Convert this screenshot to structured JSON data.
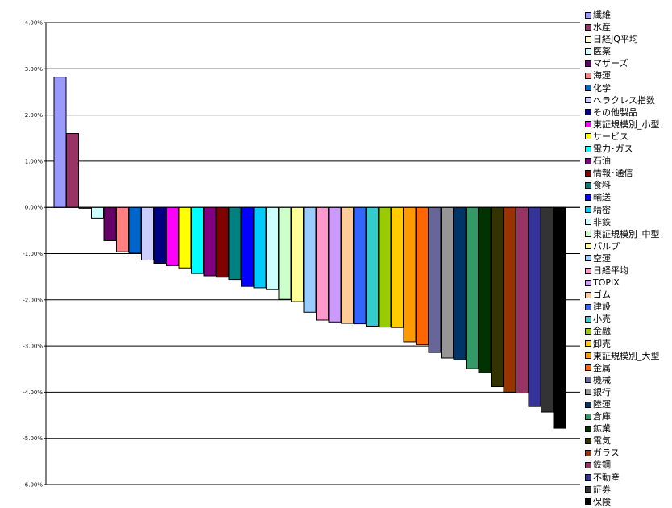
{
  "chart_data": {
    "type": "bar",
    "title": "",
    "xlabel": "",
    "ylabel": "",
    "ylim": [
      -6,
      4
    ],
    "yticks": [
      4,
      3,
      2,
      1,
      0,
      -1,
      -2,
      -3,
      -4,
      -5,
      -6
    ],
    "ytick_labels": [
      "4.00%",
      "3.00%",
      "2.00%",
      "1.00%",
      "0.00%",
      "-1.00%",
      "-2.00%",
      "-3.00%",
      "-4.00%",
      "-5.00%",
      "-6.00%"
    ],
    "grid": "horizontal major",
    "legend_position": "right",
    "unit": "%",
    "series": [
      {
        "name": "繊維",
        "value": 2.82,
        "color": "#9999FF"
      },
      {
        "name": "水産",
        "value": 1.6,
        "color": "#993366"
      },
      {
        "name": "日経JQ平均",
        "value": -0.02,
        "color": "#FFFFCC"
      },
      {
        "name": "医薬",
        "value": -0.23,
        "color": "#CCFFFF"
      },
      {
        "name": "マザーズ",
        "value": -0.72,
        "color": "#660066"
      },
      {
        "name": "海運",
        "value": -0.96,
        "color": "#FF8080"
      },
      {
        "name": "化学",
        "value": -0.99,
        "color": "#0066CC"
      },
      {
        "name": "ヘラクレス指数",
        "value": -1.14,
        "color": "#CCCCFF"
      },
      {
        "name": "その他製品",
        "value": -1.21,
        "color": "#000080"
      },
      {
        "name": "東証規模別_小型",
        "value": -1.26,
        "color": "#FF00FF"
      },
      {
        "name": "サービス",
        "value": -1.31,
        "color": "#FFFF00"
      },
      {
        "name": "電力･ガス",
        "value": -1.43,
        "color": "#00FFFF"
      },
      {
        "name": "石油",
        "value": -1.48,
        "color": "#800080"
      },
      {
        "name": "情報･通信",
        "value": -1.51,
        "color": "#800000"
      },
      {
        "name": "食料",
        "value": -1.56,
        "color": "#008080"
      },
      {
        "name": "輸送",
        "value": -1.71,
        "color": "#0000FF"
      },
      {
        "name": "精密",
        "value": -1.74,
        "color": "#00CCFF"
      },
      {
        "name": "非鉄",
        "value": -1.78,
        "color": "#CCFFFF"
      },
      {
        "name": "東証規模別_中型",
        "value": -1.99,
        "color": "#CCFFCC"
      },
      {
        "name": "パルプ",
        "value": -2.04,
        "color": "#FFFF99"
      },
      {
        "name": "空運",
        "value": -2.27,
        "color": "#99CCFF"
      },
      {
        "name": "日経平均",
        "value": -2.44,
        "color": "#FF99CC"
      },
      {
        "name": "TOPIX",
        "value": -2.48,
        "color": "#CC99FF"
      },
      {
        "name": "ゴム",
        "value": -2.51,
        "color": "#FFCC99"
      },
      {
        "name": "建設",
        "value": -2.52,
        "color": "#3366FF"
      },
      {
        "name": "小売",
        "value": -2.57,
        "color": "#33CCCC"
      },
      {
        "name": "金融",
        "value": -2.59,
        "color": "#99CC00"
      },
      {
        "name": "卸売",
        "value": -2.6,
        "color": "#FFCC00"
      },
      {
        "name": "東証規模別_大型",
        "value": -2.91,
        "color": "#FF9900"
      },
      {
        "name": "金属",
        "value": -2.97,
        "color": "#FF6600"
      },
      {
        "name": "機械",
        "value": -3.14,
        "color": "#666699"
      },
      {
        "name": "銀行",
        "value": -3.26,
        "color": "#969696"
      },
      {
        "name": "陸運",
        "value": -3.3,
        "color": "#003366"
      },
      {
        "name": "倉庫",
        "value": -3.49,
        "color": "#339966"
      },
      {
        "name": "鉱業",
        "value": -3.58,
        "color": "#003300"
      },
      {
        "name": "電気",
        "value": -3.88,
        "color": "#333300"
      },
      {
        "name": "ガラス",
        "value": -4.0,
        "color": "#993300"
      },
      {
        "name": "鉄鋼",
        "value": -4.02,
        "color": "#993366"
      },
      {
        "name": "不動産",
        "value": -4.31,
        "color": "#333399"
      },
      {
        "name": "証券",
        "value": -4.43,
        "color": "#333333"
      },
      {
        "name": "保険",
        "value": -4.78,
        "color": "#000000"
      }
    ]
  }
}
